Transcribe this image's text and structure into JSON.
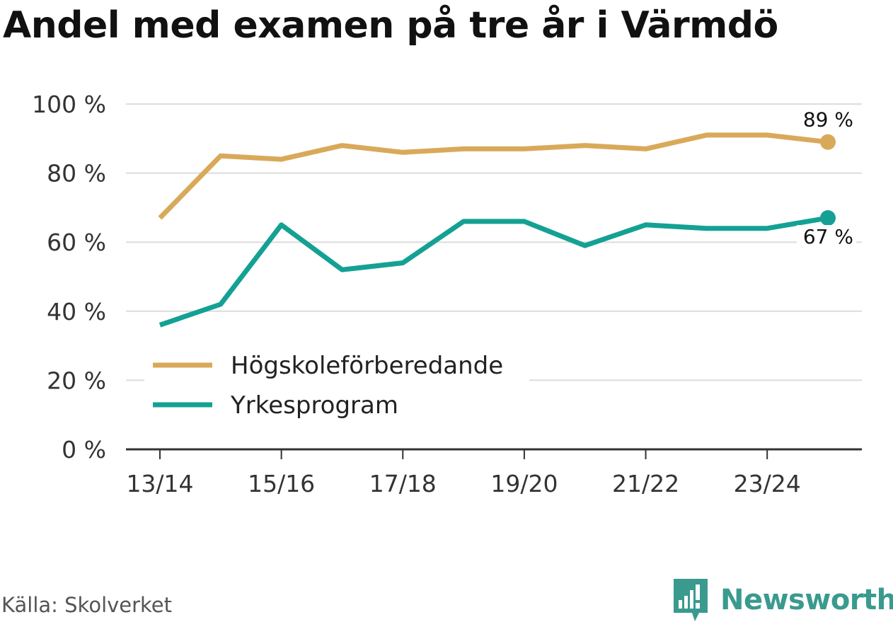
{
  "chart_data": {
    "type": "line",
    "title": "Andel med examen på tre år i Värmdö",
    "xlabel": "",
    "ylabel": "",
    "x": [
      "13/14",
      "14/15",
      "15/16",
      "16/17",
      "17/18",
      "18/19",
      "19/20",
      "20/21",
      "21/22",
      "22/23",
      "23/24",
      "24/25"
    ],
    "x_tick_labels": [
      "13/14",
      "15/16",
      "17/18",
      "19/20",
      "21/22",
      "23/24"
    ],
    "y_tick_labels": [
      "0 %",
      "20 %",
      "40 %",
      "60 %",
      "80 %",
      "100 %"
    ],
    "ylim": [
      0,
      100
    ],
    "y_unit": "%",
    "grid": true,
    "legend_position": "center-left",
    "series": [
      {
        "name": "Högskoleförberedande",
        "color": "#d9a95a",
        "values": [
          67,
          85,
          84,
          88,
          86,
          87,
          87,
          88,
          87,
          91,
          91,
          89
        ],
        "end_label": "89 %"
      },
      {
        "name": "Yrkesprogram",
        "color": "#14a194",
        "values": [
          36,
          42,
          65,
          52,
          54,
          66,
          66,
          59,
          65,
          64,
          64,
          67
        ],
        "end_label": "67 %"
      }
    ]
  },
  "footer": {
    "source": "Källa: Skolverket",
    "brand": "Newsworthy",
    "brand_color": "#3a9a8e",
    "brand_icon": "bar-chart-speech-bubble-icon"
  }
}
